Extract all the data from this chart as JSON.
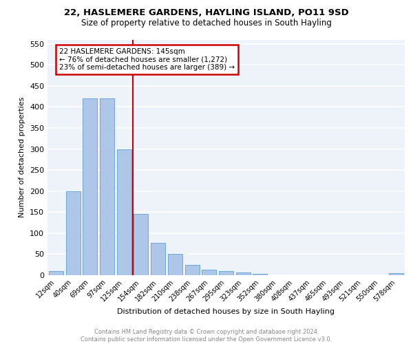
{
  "title1": "22, HASLEMERE GARDENS, HAYLING ISLAND, PO11 9SD",
  "title2": "Size of property relative to detached houses in South Hayling",
  "xlabel": "Distribution of detached houses by size in South Hayling",
  "ylabel": "Number of detached properties",
  "categories": [
    "12sqm",
    "40sqm",
    "69sqm",
    "97sqm",
    "125sqm",
    "154sqm",
    "182sqm",
    "210sqm",
    "238sqm",
    "267sqm",
    "295sqm",
    "323sqm",
    "352sqm",
    "380sqm",
    "408sqm",
    "437sqm",
    "465sqm",
    "493sqm",
    "521sqm",
    "550sqm",
    "578sqm"
  ],
  "values": [
    10,
    200,
    420,
    420,
    300,
    145,
    77,
    50,
    25,
    13,
    10,
    7,
    4,
    0,
    0,
    0,
    0,
    0,
    0,
    0,
    5
  ],
  "bar_color": "#aec6e8",
  "bar_edge_color": "#5a9fd4",
  "property_line_label": "22 HASLEMERE GARDENS: 145sqm",
  "annotation_line1": "← 76% of detached houses are smaller (1,272)",
  "annotation_line2": "23% of semi-detached houses are larger (389) →",
  "annotation_box_color": "#cc0000",
  "vline_color": "#cc0000",
  "ylim": [
    0,
    560
  ],
  "yticks": [
    0,
    50,
    100,
    150,
    200,
    250,
    300,
    350,
    400,
    450,
    500,
    550
  ],
  "footnote1": "Contains HM Land Registry data © Crown copyright and database right 2024.",
  "footnote2": "Contains public sector information licensed under the Open Government Licence v3.0.",
  "bg_color": "#eef2f9",
  "grid_color": "#ffffff"
}
